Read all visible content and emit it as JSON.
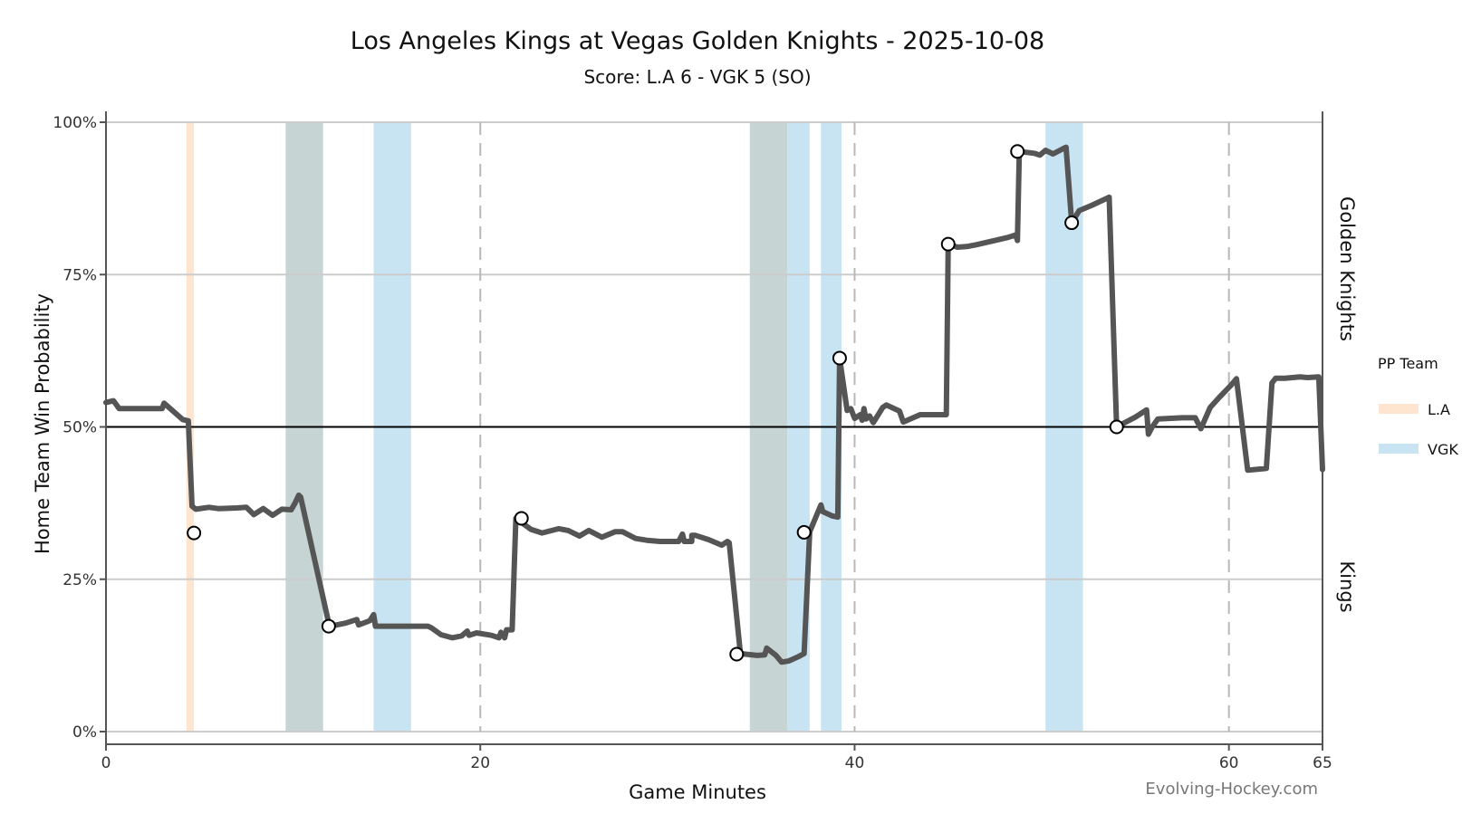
{
  "chart_data": {
    "type": "line",
    "title": "Los Angeles Kings at Vegas Golden Knights - 2025-10-08",
    "subtitle": "Score: L.A 6 - VGK 5 (SO)",
    "xlabel": "Game Minutes",
    "ylabel": "Home Team Win Probability",
    "xlim": [
      0,
      65
    ],
    "ylim": [
      0,
      100
    ],
    "x_ticks": [
      {
        "value": 0,
        "label": "0"
      },
      {
        "value": 20,
        "label": "20"
      },
      {
        "value": 40,
        "label": "40"
      },
      {
        "value": 60,
        "label": "60"
      },
      {
        "value": 65,
        "label": "65"
      }
    ],
    "y_ticks": [
      {
        "value": 0,
        "label": "0%"
      },
      {
        "value": 25,
        "label": "25%"
      },
      {
        "value": 50,
        "label": "50%"
      },
      {
        "value": 75,
        "label": "75%"
      },
      {
        "value": 100,
        "label": "100%"
      }
    ],
    "period_lines": [
      20,
      40,
      60
    ],
    "reference_line": 50,
    "side_labels": {
      "top": "Golden Knights",
      "bottom": "Kings"
    },
    "legend": {
      "title": "PP Team",
      "items": [
        {
          "name": "L.A",
          "color": "#fde5d0"
        },
        {
          "name": "VGK",
          "color": "#c8e4f2"
        }
      ]
    },
    "overlap_color": "#c6d4d4",
    "power_plays": [
      {
        "team": "L.A",
        "start": 4.3,
        "end": 4.7
      },
      {
        "team": "both",
        "start": 9.6,
        "end": 11.6
      },
      {
        "team": "VGK",
        "start": 14.3,
        "end": 16.3
      },
      {
        "team": "both",
        "start": 34.4,
        "end": 36.4
      },
      {
        "team": "VGK",
        "start": 36.4,
        "end": 37.6
      },
      {
        "team": "VGK",
        "start": 38.2,
        "end": 39.3
      },
      {
        "team": "VGK",
        "start": 50.2,
        "end": 52.2
      }
    ],
    "series": [
      {
        "name": "Home Team Win Probability",
        "color": "#555555",
        "points": [
          [
            0.0,
            54.0
          ],
          [
            0.4,
            54.3
          ],
          [
            0.7,
            53.0
          ],
          [
            1.5,
            53.0
          ],
          [
            2.8,
            53.0
          ],
          [
            3.0,
            53.0
          ],
          [
            3.1,
            53.9
          ],
          [
            4.1,
            51.2
          ],
          [
            4.4,
            51.0
          ],
          [
            4.6,
            37.0
          ],
          [
            4.8,
            36.5
          ],
          [
            5.5,
            36.8
          ],
          [
            6.0,
            36.6
          ],
          [
            7.0,
            36.7
          ],
          [
            7.5,
            36.8
          ],
          [
            7.9,
            35.6
          ],
          [
            8.4,
            36.6
          ],
          [
            8.9,
            35.5
          ],
          [
            9.4,
            36.5
          ],
          [
            9.9,
            36.4
          ],
          [
            10.1,
            37.5
          ],
          [
            10.3,
            38.8
          ],
          [
            10.4,
            38.5
          ],
          [
            11.9,
            17.8
          ],
          [
            12.0,
            17.3
          ],
          [
            12.8,
            17.8
          ],
          [
            13.4,
            18.4
          ],
          [
            13.5,
            17.5
          ],
          [
            14.1,
            18.2
          ],
          [
            14.3,
            19.2
          ],
          [
            14.4,
            17.3
          ],
          [
            16.0,
            17.3
          ],
          [
            17.2,
            17.3
          ],
          [
            17.4,
            17.0
          ],
          [
            17.9,
            15.9
          ],
          [
            18.5,
            15.4
          ],
          [
            19.0,
            15.7
          ],
          [
            19.3,
            16.5
          ],
          [
            19.4,
            15.8
          ],
          [
            19.8,
            16.2
          ],
          [
            20.6,
            15.8
          ],
          [
            21.0,
            15.4
          ],
          [
            21.1,
            16.3
          ],
          [
            21.3,
            15.4
          ],
          [
            21.4,
            16.7
          ],
          [
            21.7,
            16.7
          ],
          [
            21.9,
            35.0
          ],
          [
            22.7,
            33.2
          ],
          [
            23.3,
            32.6
          ],
          [
            24.2,
            33.3
          ],
          [
            24.7,
            33.0
          ],
          [
            25.3,
            32.1
          ],
          [
            25.8,
            33.0
          ],
          [
            26.5,
            31.9
          ],
          [
            27.2,
            32.8
          ],
          [
            27.6,
            32.8
          ],
          [
            28.3,
            31.7
          ],
          [
            28.9,
            31.4
          ],
          [
            29.6,
            31.2
          ],
          [
            30.0,
            31.2
          ],
          [
            30.6,
            31.2
          ],
          [
            30.8,
            32.4
          ],
          [
            30.9,
            31.2
          ],
          [
            31.3,
            31.2
          ],
          [
            31.3,
            32.2
          ],
          [
            31.5,
            32.2
          ],
          [
            32.2,
            31.5
          ],
          [
            32.9,
            30.6
          ],
          [
            33.2,
            31.2
          ],
          [
            33.3,
            31.0
          ],
          [
            33.9,
            12.8
          ],
          [
            34.8,
            12.5
          ],
          [
            35.2,
            12.6
          ],
          [
            35.3,
            13.7
          ],
          [
            35.8,
            12.5
          ],
          [
            36.1,
            11.4
          ],
          [
            36.5,
            11.6
          ],
          [
            37.0,
            12.3
          ],
          [
            37.3,
            12.8
          ],
          [
            37.6,
            32.8
          ],
          [
            38.2,
            37.2
          ],
          [
            38.3,
            36.1
          ],
          [
            38.8,
            35.4
          ],
          [
            39.1,
            35.2
          ],
          [
            39.2,
            61.3
          ],
          [
            39.6,
            52.7
          ],
          [
            39.8,
            53.0
          ],
          [
            40.0,
            51.4
          ],
          [
            40.3,
            52.0
          ],
          [
            40.4,
            51.1
          ],
          [
            40.5,
            53.0
          ],
          [
            40.6,
            51.3
          ],
          [
            40.8,
            51.8
          ],
          [
            41.0,
            50.7
          ],
          [
            41.5,
            53.2
          ],
          [
            41.7,
            53.6
          ],
          [
            42.4,
            52.6
          ],
          [
            42.6,
            50.8
          ],
          [
            43.5,
            52.0
          ],
          [
            44.5,
            52.0
          ],
          [
            44.9,
            52.0
          ],
          [
            45.0,
            80.0
          ],
          [
            45.5,
            79.5
          ],
          [
            46.0,
            79.6
          ],
          [
            46.5,
            79.9
          ],
          [
            47.5,
            80.6
          ],
          [
            48.2,
            81.1
          ],
          [
            48.6,
            81.5
          ],
          [
            48.7,
            80.6
          ],
          [
            48.8,
            95.2
          ],
          [
            49.6,
            94.9
          ],
          [
            49.9,
            94.6
          ],
          [
            50.2,
            95.4
          ],
          [
            50.4,
            95.1
          ],
          [
            50.6,
            94.8
          ],
          [
            51.1,
            95.6
          ],
          [
            51.3,
            95.9
          ],
          [
            51.6,
            83.5
          ],
          [
            51.8,
            84.5
          ],
          [
            52.0,
            85.5
          ],
          [
            52.7,
            86.4
          ],
          [
            53.6,
            87.7
          ],
          [
            54.0,
            50.0
          ],
          [
            55.0,
            51.6
          ],
          [
            55.6,
            52.8
          ],
          [
            55.7,
            48.8
          ],
          [
            55.9,
            50.0
          ],
          [
            56.2,
            51.3
          ],
          [
            56.8,
            51.4
          ],
          [
            57.5,
            51.5
          ],
          [
            58.2,
            51.5
          ],
          [
            58.5,
            49.7
          ],
          [
            59.0,
            53.2
          ],
          [
            59.5,
            54.9
          ],
          [
            60.1,
            56.8
          ],
          [
            60.4,
            57.9
          ],
          [
            61.0,
            42.9
          ],
          [
            62.0,
            43.2
          ],
          [
            62.3,
            57.2
          ],
          [
            62.5,
            58.0
          ],
          [
            63.0,
            58.0
          ],
          [
            63.8,
            58.2
          ],
          [
            64.2,
            58.1
          ],
          [
            64.8,
            58.2
          ],
          [
            65.0,
            43.0
          ]
        ]
      }
    ],
    "goal_markers": [
      {
        "x": 4.7,
        "y": 32.6
      },
      {
        "x": 11.9,
        "y": 17.3
      },
      {
        "x": 22.2,
        "y": 35.0
      },
      {
        "x": 33.7,
        "y": 12.7
      },
      {
        "x": 37.3,
        "y": 32.7
      },
      {
        "x": 39.2,
        "y": 61.3
      },
      {
        "x": 45.0,
        "y": 80.0
      },
      {
        "x": 48.7,
        "y": 95.2
      },
      {
        "x": 51.6,
        "y": 83.5
      },
      {
        "x": 54.0,
        "y": 50.0
      }
    ],
    "credit": "Evolving-Hockey.com"
  }
}
